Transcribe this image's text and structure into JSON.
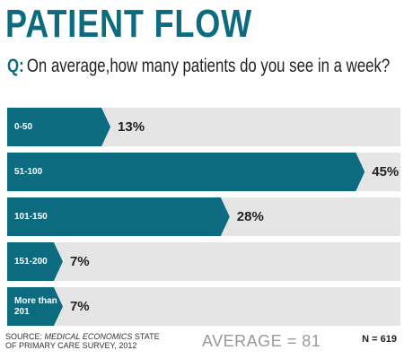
{
  "chart_data": {
    "type": "bar",
    "orientation": "horizontal",
    "title": "PATIENT FLOW",
    "question_prefix": "Q:",
    "question": "On average,how many patients do you see in a week?",
    "categories": [
      "0-50",
      "51-100",
      "101-150",
      "151-200",
      "More than 201"
    ],
    "values": [
      13,
      45,
      28,
      7,
      7
    ],
    "value_labels": [
      "13%",
      "45%",
      "28%",
      "7%",
      "7%"
    ],
    "color": "#0d6b80",
    "track_color": "#e5e5e6",
    "source": [
      "SOURCE:",
      "MEDICAL ECONOMICS",
      "STATE OF PRIMARY CARE SURVEY, 2012"
    ],
    "average": "AVERAGE = 81",
    "n": "N = 619"
  }
}
